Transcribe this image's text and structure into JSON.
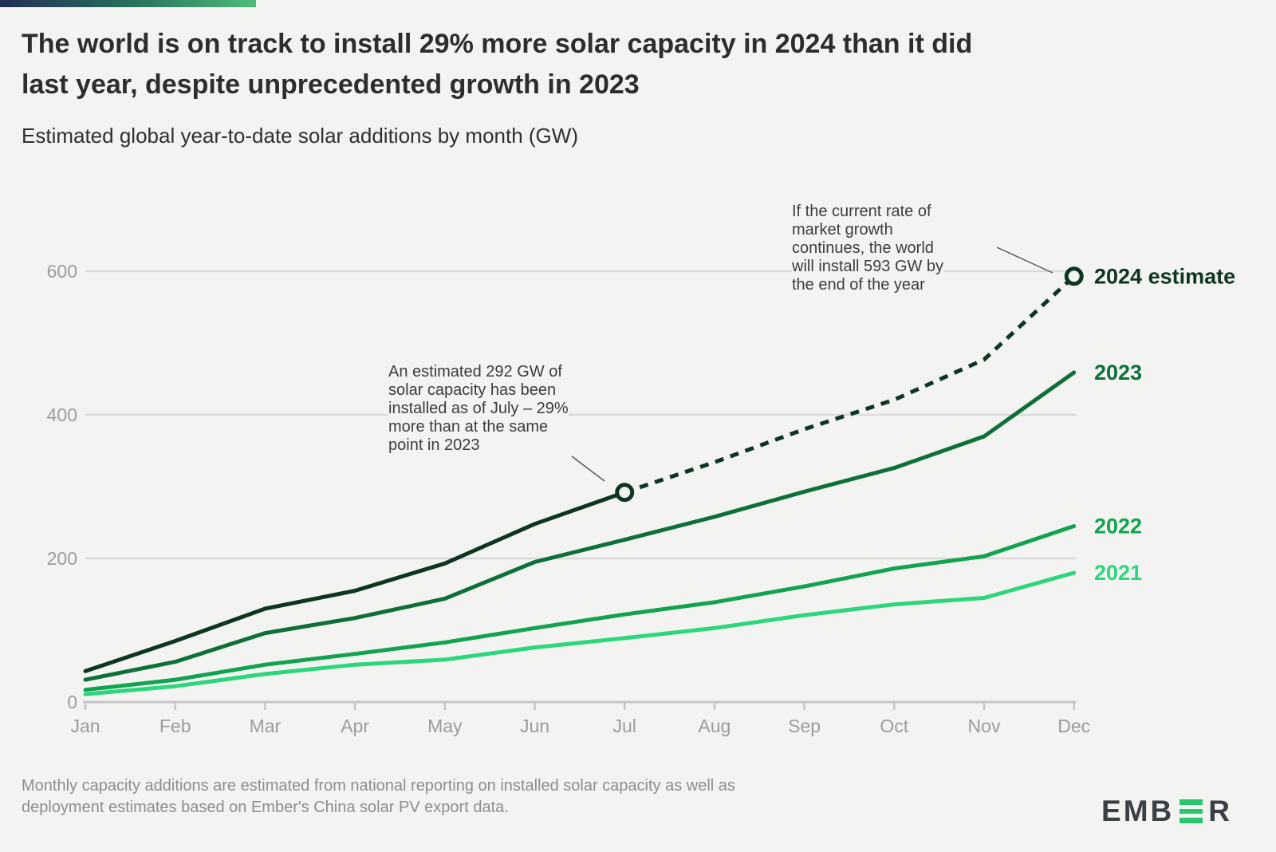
{
  "header": {
    "title": "The world is on track to install 29% more solar capacity in 2024 than it did\nlast year, despite unprecedented growth in 2023",
    "subtitle": "Estimated global year-to-date solar additions by month (GW)"
  },
  "chart_data": {
    "type": "line",
    "title": "Estimated global year-to-date solar additions by month (GW)",
    "xlabel": "",
    "ylabel": "GW",
    "x": [
      "Jan",
      "Feb",
      "Mar",
      "Apr",
      "May",
      "Jun",
      "Jul",
      "Aug",
      "Sep",
      "Oct",
      "Nov",
      "Dec"
    ],
    "ylim": [
      0,
      650
    ],
    "yticks": [
      0,
      200,
      400,
      600
    ],
    "grid": "horizontal",
    "legend_position": "right-of-line-ends",
    "series": [
      {
        "name": "2021",
        "label": "2021",
        "color": "#2dd67d",
        "style": "solid",
        "values": [
          11,
          22,
          39,
          52,
          59,
          76,
          89,
          103,
          121,
          136,
          145,
          180
        ]
      },
      {
        "name": "2022",
        "label": "2022",
        "color": "#13a350",
        "style": "solid",
        "values": [
          17,
          31,
          52,
          67,
          83,
          103,
          122,
          139,
          161,
          186,
          203,
          245
        ]
      },
      {
        "name": "2023",
        "label": "2023",
        "color": "#0e7038",
        "style": "solid",
        "values": [
          31,
          56,
          96,
          117,
          144,
          195,
          226,
          258,
          293,
          326,
          370,
          459
        ]
      },
      {
        "name": "2024-actual",
        "label": null,
        "color": "#0d351f",
        "style": "solid",
        "values": [
          43,
          85,
          130,
          155,
          193,
          248,
          292,
          null,
          null,
          null,
          null,
          null
        ]
      },
      {
        "name": "2024-estimate",
        "label": "2024 estimate",
        "color": "#0d351f",
        "style": "dashed",
        "values": [
          null,
          null,
          null,
          null,
          null,
          null,
          292,
          334,
          380,
          421,
          477,
          593
        ]
      }
    ],
    "markers": [
      {
        "month": "Jul",
        "value": 292,
        "series": "2024-actual"
      },
      {
        "month": "Dec",
        "value": 593,
        "series": "2024-estimate"
      }
    ]
  },
  "annotations": {
    "july": "An estimated 292 GW of\nsolar capacity has been\ninstalled as of July – 29%\nmore than at the same\npoint in 2023",
    "december": "If the current rate of\nmarket growth\ncontinues, the world\nwill install 593 GW by\nthe end of the year"
  },
  "footer": {
    "note": "Monthly capacity additions are estimated from national reporting on installed solar capacity as well as\ndeployment estimates based on Ember's China solar PV export data.",
    "logo_prefix": "EMB",
    "logo_suffix": "R"
  },
  "colors": {
    "background": "#f3f4f2",
    "gridline": "#d9d9d9",
    "axis": "#c5c5c5",
    "tick_text": "#9c9c9c",
    "annotation_text": "#3c3c3c",
    "connector": "#5a5a5a",
    "accent_gradient_start": "#242e55",
    "accent_gradient_end": "#4fbc79",
    "logo_green": "#28c76f"
  }
}
